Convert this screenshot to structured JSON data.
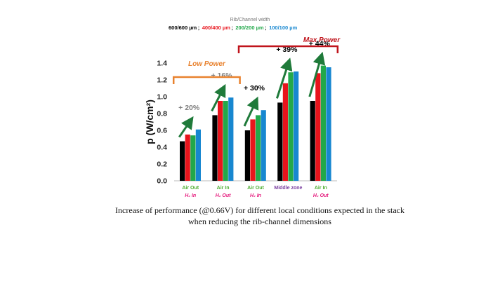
{
  "chart_data": {
    "type": "bar",
    "legend_title": "Rib/Channel width",
    "series": [
      {
        "name": "600/600  µm",
        "color": "#000000",
        "values": [
          0.47,
          0.78,
          0.6,
          0.93,
          0.95
        ]
      },
      {
        "name": "400/400  µm",
        "color": "#e8141c",
        "values": [
          0.55,
          0.95,
          0.73,
          1.16,
          1.28
        ]
      },
      {
        "name": "200/200  µm",
        "color": "#22a84a",
        "values": [
          0.54,
          0.95,
          0.78,
          1.29,
          1.37
        ]
      },
      {
        "name": "100/100  µm",
        "color": "#1787d0",
        "values": [
          0.61,
          0.99,
          0.84,
          1.3,
          1.35
        ]
      }
    ],
    "categories": [
      {
        "line1": "Air Out",
        "line1_color": "#4cae30",
        "line2": "H₂ In",
        "line2_color": "#e5197c"
      },
      {
        "line1": "Air In",
        "line1_color": "#4cae30",
        "line2": "H₂ Out",
        "line2_color": "#e5197c"
      },
      {
        "line1": "Air Out",
        "line1_color": "#4cae30",
        "line2": "H₂ In",
        "line2_color": "#e5197c"
      },
      {
        "line1": "Middle zone",
        "line1_color": "#7a3fa0",
        "line2": "",
        "line2_color": "#7a3fa0"
      },
      {
        "line1": "Air In",
        "line1_color": "#4cae30",
        "line2": "H₂ Out",
        "line2_color": "#e5197c"
      }
    ],
    "ylabel": "p (W/cm²)",
    "yticks": [
      "0.0",
      "0.2",
      "0.4",
      "0.6",
      "0.8",
      "1.0",
      "1.2",
      "1.4"
    ],
    "ylim": [
      0,
      1.4
    ],
    "increases": [
      {
        "label": "+ 20%",
        "color": "#808080"
      },
      {
        "label": "+ 16%",
        "color": "#808080"
      },
      {
        "label": "+ 30%",
        "color": "#000000"
      },
      {
        "label": "+ 39%",
        "color": "#000000"
      },
      {
        "label": "+ 44%",
        "color": "#000000"
      }
    ],
    "brackets": {
      "low": {
        "label": "Low Power",
        "color": "#e8822e"
      },
      "max": {
        "label": "Max Power",
        "color": "#c0141c"
      }
    }
  },
  "caption": "Increase of performance (@0.66V) for different local conditions expected in the stack when reducing the rib-channel dimensions"
}
